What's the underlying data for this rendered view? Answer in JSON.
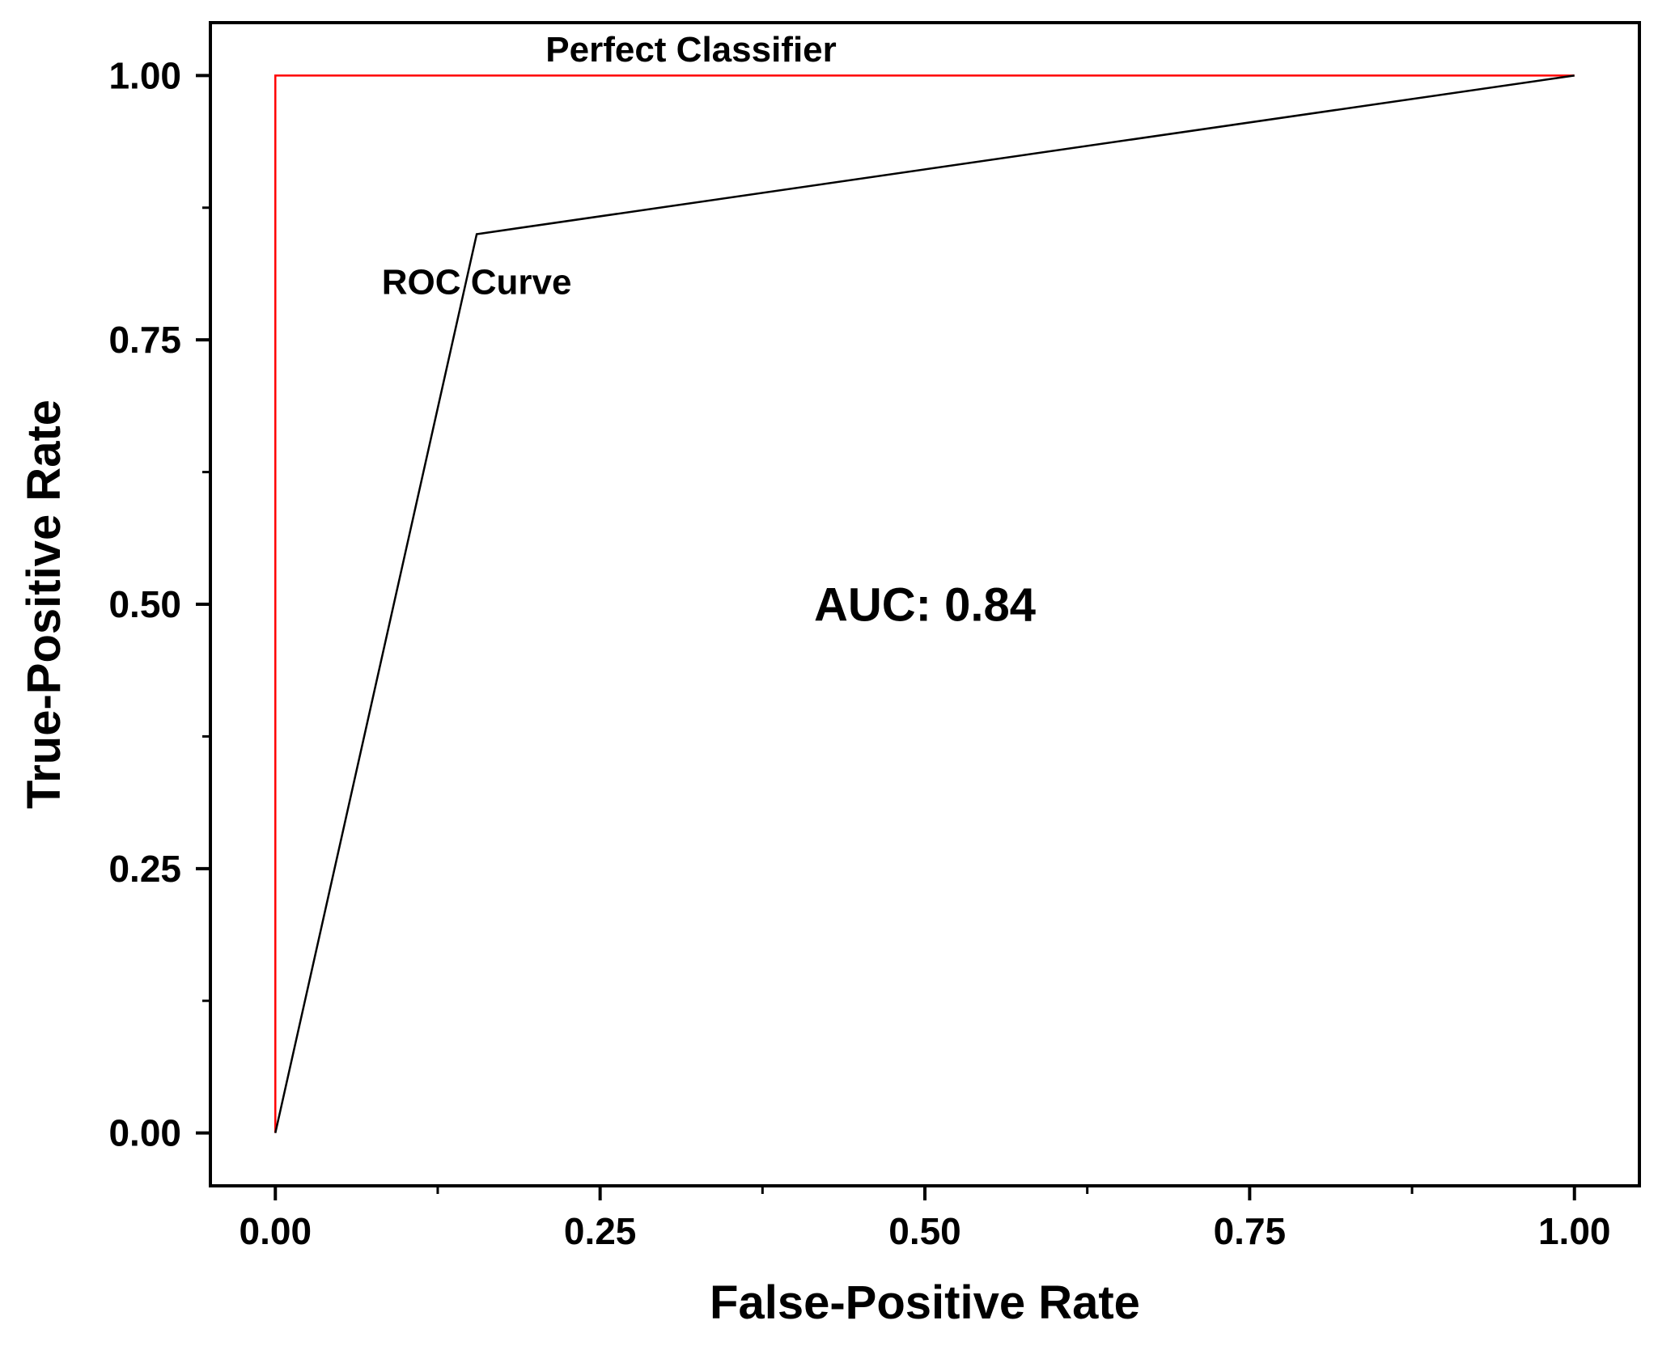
{
  "chart_data": {
    "type": "line",
    "title": "",
    "xlabel": "False-Positive Rate",
    "ylabel": "True-Positive Rate",
    "xlim": [
      -0.05,
      1.05
    ],
    "ylim": [
      -0.05,
      1.05
    ],
    "x_ticks": [
      0.0,
      0.25,
      0.5,
      0.75,
      1.0
    ],
    "x_tick_labels": [
      "0.00",
      "0.25",
      "0.50",
      "0.75",
      "1.00"
    ],
    "y_ticks": [
      0.0,
      0.25,
      0.5,
      0.75,
      1.0
    ],
    "y_tick_labels": [
      "0.00",
      "0.25",
      "0.50",
      "0.75",
      "1.00"
    ],
    "grid": false,
    "legend": "none",
    "series": [
      {
        "name": "Perfect Classifier",
        "color": "#ff0000",
        "x": [
          0.0,
          0.0,
          1.0
        ],
        "y": [
          0.0,
          1.0,
          1.0
        ]
      },
      {
        "name": "ROC Curve",
        "color": "#000000",
        "x": [
          0.0,
          0.155,
          1.0
        ],
        "y": [
          0.0,
          0.85,
          1.0
        ]
      }
    ],
    "annotations": [
      {
        "text": "Perfect Classifier",
        "x": 0.32,
        "y": 1.025
      },
      {
        "text": "ROC Curve",
        "x": 0.155,
        "y": 0.805
      },
      {
        "text": "AUC: 0.84",
        "x": 0.5,
        "y": 0.5
      }
    ]
  }
}
